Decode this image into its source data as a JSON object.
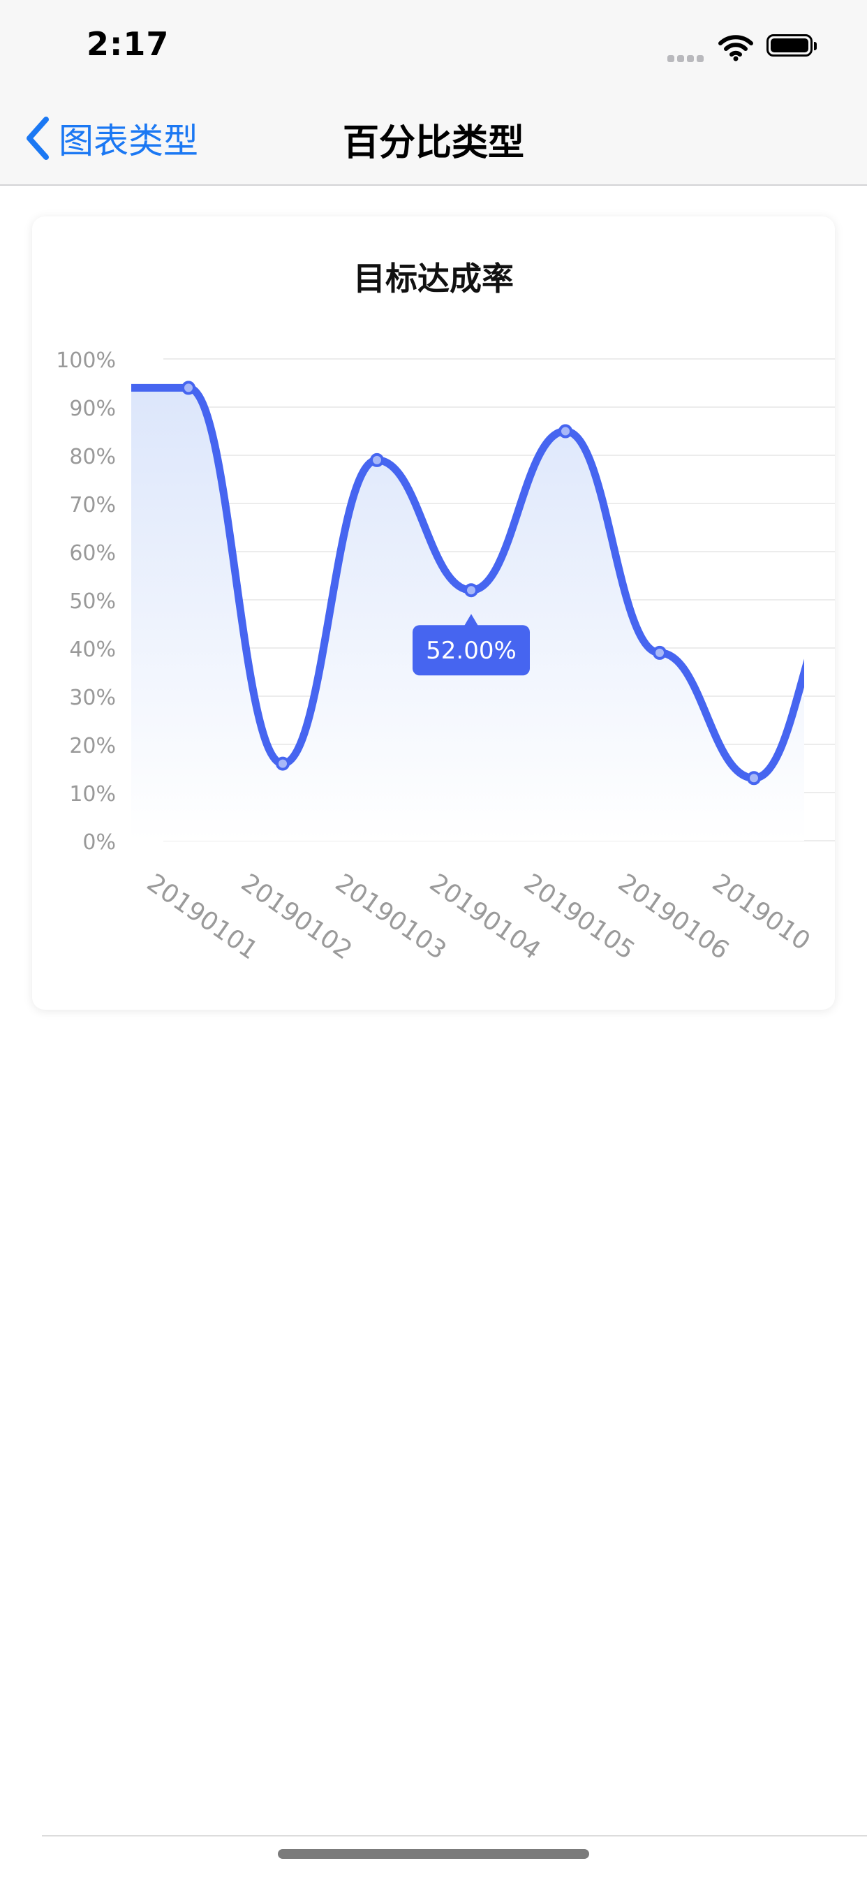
{
  "status_bar": {
    "time": "2:17"
  },
  "nav": {
    "back_label": "图表类型",
    "title": "百分比类型"
  },
  "colors": {
    "accent": "#1b78f3",
    "line": "#4665f0",
    "tooltip": "#4665f0",
    "area_top": "#dce6fb"
  },
  "icons": {
    "back": "chevron-left-icon",
    "wifi": "wifi-icon",
    "battery": "battery-icon",
    "signal": "signal-dots-icon"
  },
  "chart_data": {
    "type": "area",
    "title": "目标达成率",
    "categories": [
      "20190101",
      "20190102",
      "20190103",
      "20190104",
      "20190105",
      "20190106",
      "2019010"
    ],
    "series": [
      {
        "values": [
          94,
          16,
          79,
          52,
          85,
          39,
          13
        ]
      }
    ],
    "y_ticks": [
      "0%",
      "10%",
      "20%",
      "30%",
      "40%",
      "50%",
      "60%",
      "70%",
      "80%",
      "90%",
      "100%"
    ],
    "ylim": [
      0,
      100
    ],
    "grid": true,
    "smooth": true,
    "tooltip": {
      "category": "20190104",
      "text": "52.00%"
    }
  }
}
